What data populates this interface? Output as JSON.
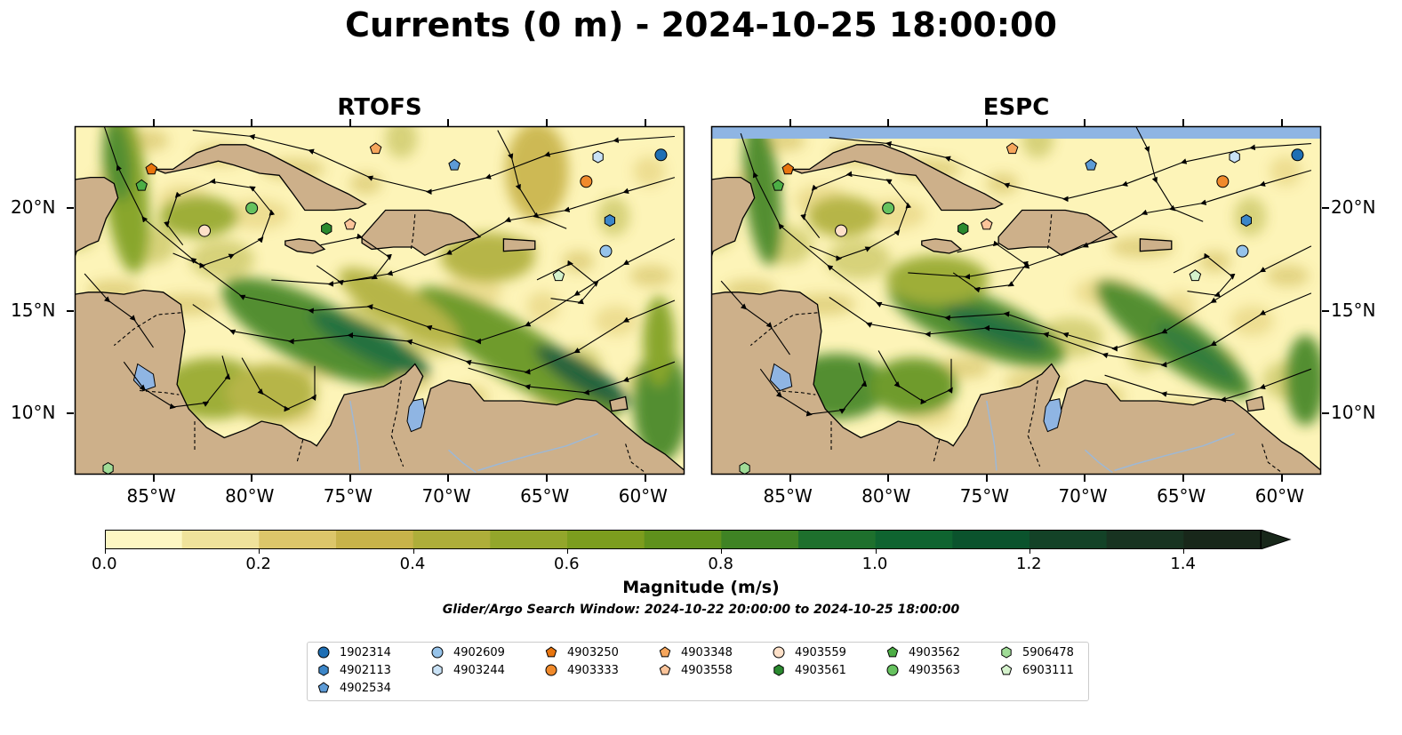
{
  "title": "Currents (0 m) - 2024-10-25 18:00:00",
  "panels": [
    {
      "title": "RTOFS"
    },
    {
      "title": "ESPC"
    }
  ],
  "axes": {
    "x_ticks": [
      "85°W",
      "80°W",
      "75°W",
      "70°W",
      "65°W",
      "60°W"
    ],
    "y_ticks": [
      "20°N",
      "15°N",
      "10°N"
    ],
    "lon_range": [
      -89,
      -58
    ],
    "lat_range": [
      7,
      24
    ]
  },
  "colorbar": {
    "label": "Magnitude (m/s)",
    "ticks": [
      "0.0",
      "0.2",
      "0.4",
      "0.6",
      "0.8",
      "1.0",
      "1.2",
      "1.4"
    ],
    "range": [
      0,
      1.5
    ],
    "colors": [
      "#fdf7c3",
      "#efe29b",
      "#dcc66a",
      "#c8b34a",
      "#aeae3a",
      "#93a62b",
      "#7c9d1e",
      "#5f911c",
      "#3f8324",
      "#1e702d",
      "#0f6430",
      "#0b532d",
      "#134227",
      "#183321",
      "#18271a"
    ],
    "extend": "max"
  },
  "search_window": "Glider/Argo Search Window: 2024-10-22 20:00:00 to 2024-10-25 18:00:00",
  "colors": {
    "ocean_low": "#fdf4b8",
    "ocean_high": "#0f6430",
    "land": "#cdb08a",
    "lakes": "#8fb5e3"
  },
  "floats": [
    {
      "id": "1902314",
      "shape": "circle",
      "color": "#1f6fb4",
      "lon": -59.2,
      "lat": 22.6
    },
    {
      "id": "4902113",
      "shape": "hexagon",
      "color": "#3c86c8",
      "lon": -61.8,
      "lat": 19.4
    },
    {
      "id": "4902534",
      "shape": "pentagon",
      "color": "#5d9bd6",
      "lon": -69.7,
      "lat": 22.1
    },
    {
      "id": "4902609",
      "shape": "circle",
      "color": "#96c3ea",
      "lon": -62.0,
      "lat": 17.9
    },
    {
      "id": "4903244",
      "shape": "hexagon",
      "color": "#c9e2f6",
      "lon": -62.4,
      "lat": 22.5
    },
    {
      "id": "4903250",
      "shape": "pentagon",
      "color": "#e8750f",
      "lon": -85.1,
      "lat": 21.9
    },
    {
      "id": "4903333",
      "shape": "circle",
      "color": "#f08a2c",
      "lon": -63.0,
      "lat": 21.3
    },
    {
      "id": "4903348",
      "shape": "pentagon",
      "color": "#f6a65c",
      "lon": -73.7,
      "lat": 22.9
    },
    {
      "id": "4903558",
      "shape": "pentagon",
      "color": "#fbc49a",
      "lon": -75.0,
      "lat": 19.2
    },
    {
      "id": "4903559",
      "shape": "circle",
      "color": "#fde0c8",
      "lon": -82.4,
      "lat": 18.9
    },
    {
      "id": "4903561",
      "shape": "hexagon",
      "color": "#2a8a2f",
      "lon": -76.2,
      "lat": 19.0
    },
    {
      "id": "4903562",
      "shape": "pentagon",
      "color": "#4cae45",
      "lon": -85.6,
      "lat": 21.1
    },
    {
      "id": "4903563",
      "shape": "circle",
      "color": "#66c25f",
      "lon": -80.0,
      "lat": 20.0
    },
    {
      "id": "5906478",
      "shape": "hexagon",
      "color": "#a0dc97",
      "lon": -87.3,
      "lat": 7.3
    },
    {
      "id": "6903111",
      "shape": "pentagon",
      "color": "#d5f2cc",
      "lon": -64.4,
      "lat": 16.7
    }
  ]
}
